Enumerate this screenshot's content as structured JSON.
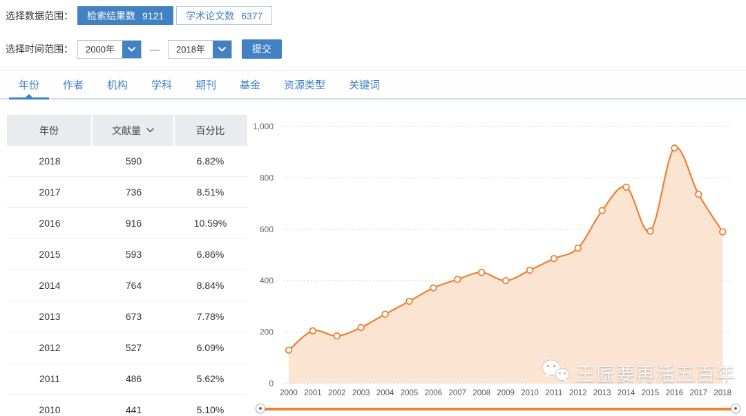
{
  "filters": {
    "data_range_label": "选择数据范围：",
    "data_range_options": [
      {
        "label": "检索结果数",
        "count": "9121",
        "active": true
      },
      {
        "label": "学术论文数",
        "count": "6377",
        "active": false
      }
    ],
    "time_range_label": "选择时间范围：",
    "time_from": "2000年",
    "time_to": "2018年",
    "range_separator": "—",
    "submit_label": "提交"
  },
  "tabs": [
    {
      "label": "年份",
      "active": true
    },
    {
      "label": "作者",
      "active": false
    },
    {
      "label": "机构",
      "active": false
    },
    {
      "label": "学科",
      "active": false
    },
    {
      "label": "期刊",
      "active": false
    },
    {
      "label": "基金",
      "active": false
    },
    {
      "label": "资源类型",
      "active": false
    },
    {
      "label": "关键词",
      "active": false
    }
  ],
  "table": {
    "columns": [
      "年份",
      "文献量",
      "百分比"
    ],
    "sort_icon": "chevron-down-icon",
    "rows": [
      [
        "2018",
        "590",
        "6.82%"
      ],
      [
        "2017",
        "736",
        "8.51%"
      ],
      [
        "2016",
        "916",
        "10.59%"
      ],
      [
        "2015",
        "593",
        "6.86%"
      ],
      [
        "2014",
        "764",
        "8.84%"
      ],
      [
        "2013",
        "673",
        "7.78%"
      ],
      [
        "2012",
        "527",
        "6.09%"
      ],
      [
        "2011",
        "486",
        "5.62%"
      ],
      [
        "2010",
        "441",
        "5.10%"
      ]
    ]
  },
  "chart_data": {
    "type": "area",
    "title": "",
    "xlabel": "",
    "ylabel": "",
    "x": [
      "2000",
      "2001",
      "2002",
      "2003",
      "2004",
      "2005",
      "2006",
      "2007",
      "2008",
      "2009",
      "2010",
      "2011",
      "2012",
      "2013",
      "2014",
      "2015",
      "2016",
      "2017",
      "2018"
    ],
    "values": [
      130,
      205,
      185,
      218,
      270,
      320,
      372,
      405,
      432,
      400,
      441,
      486,
      527,
      673,
      764,
      593,
      916,
      736,
      590
    ],
    "ylim": [
      0,
      1000
    ],
    "ytick_values": [
      1000,
      800,
      600,
      400,
      200,
      0
    ],
    "ytick_labels": [
      "1,000",
      "800",
      "600",
      "400",
      "200",
      "0"
    ],
    "grid": "dotted-horizontal",
    "legend": "none",
    "line_color": "#ee7f33",
    "fill_color": "#fce4d2",
    "marker": "white-circle-orange-ring"
  },
  "watermark": {
    "text": "王匠要再活五百年",
    "icon": "wechat-icon"
  },
  "colors": {
    "accent_blue": "#4182c4",
    "accent_orange": "#ee7f33",
    "table_header_bg": "#e9ebee"
  }
}
